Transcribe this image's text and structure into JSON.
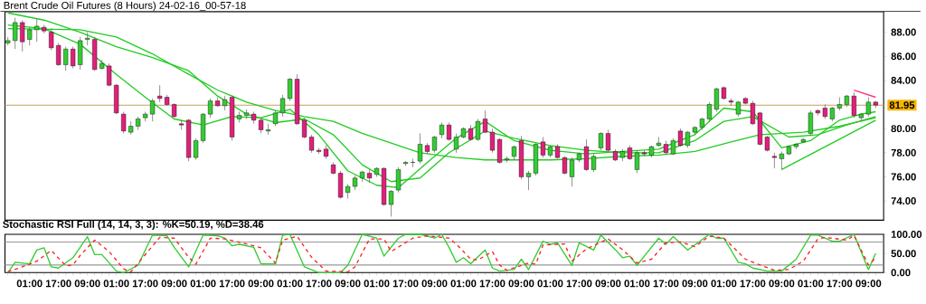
{
  "chart_data": [
    {
      "type": "candlestick",
      "title": "Brent Crude Oil Futures (8 Hours) 24-02-16_00-57-18",
      "tick_labels": "y",
      "categories": [
        null,
        null,
        null,
        null,
        null,
        null,
        null,
        null,
        null,
        null,
        null,
        null,
        null,
        null,
        null,
        null,
        null,
        null,
        null,
        null,
        null,
        null,
        null,
        null,
        null,
        null,
        null,
        null,
        null,
        null,
        null,
        null,
        null,
        null,
        null,
        null,
        null,
        null,
        null,
        null,
        null,
        null,
        null,
        null,
        null,
        null,
        null,
        null,
        null,
        null,
        null,
        null,
        null,
        null,
        null,
        null,
        null,
        null,
        null,
        null,
        null,
        null,
        null,
        null,
        null,
        null,
        null,
        null,
        null,
        null,
        null,
        null,
        null,
        null,
        null,
        null,
        null,
        null,
        null,
        null,
        null,
        null,
        null,
        null,
        null,
        null,
        null,
        null,
        null,
        null,
        null,
        null,
        null,
        null,
        null,
        null,
        null,
        null,
        null,
        null,
        null,
        null,
        null,
        null,
        null,
        null,
        null,
        null,
        null,
        null,
        null,
        null,
        null,
        null,
        null,
        null,
        null,
        null,
        null,
        null,
        null
      ],
      "ohlc": [
        [
          87.1,
          87.6,
          86.9,
          87.3
        ],
        [
          87.3,
          89.2,
          86.6,
          88.8
        ],
        [
          88.8,
          89.0,
          86.4,
          87.2
        ],
        [
          87.4,
          88.4,
          86.9,
          88.2
        ],
        [
          88.2,
          89.1,
          87.2,
          88.5
        ],
        [
          88.4,
          88.6,
          87.9,
          88.1
        ],
        [
          88.0,
          88.3,
          86.5,
          86.7
        ],
        [
          86.9,
          87.1,
          85.2,
          85.3
        ],
        [
          85.3,
          86.8,
          84.8,
          86.6
        ],
        [
          86.6,
          86.8,
          85.0,
          85.2
        ],
        [
          85.3,
          87.6,
          84.9,
          87.3
        ],
        [
          87.4,
          88.0,
          86.9,
          87.5
        ],
        [
          87.4,
          87.6,
          84.8,
          84.9
        ],
        [
          85.0,
          85.7,
          84.9,
          85.4
        ],
        [
          85.2,
          85.4,
          83.5,
          83.6
        ],
        [
          83.6,
          83.7,
          81.2,
          81.3
        ],
        [
          81.2,
          81.4,
          79.6,
          79.8
        ],
        [
          79.7,
          80.6,
          79.5,
          80.2
        ],
        [
          80.2,
          81.0,
          79.9,
          80.8
        ],
        [
          80.9,
          81.4,
          80.6,
          81.2
        ],
        [
          81.2,
          82.5,
          80.6,
          82.3
        ],
        [
          82.7,
          83.6,
          82.2,
          82.5
        ],
        [
          82.6,
          82.8,
          81.9,
          82.0
        ],
        [
          82.0,
          82.1,
          80.9,
          81.0
        ],
        [
          80.4,
          80.7,
          79.9,
          80.3
        ],
        [
          80.7,
          80.8,
          77.3,
          77.6
        ],
        [
          77.6,
          79.2,
          77.4,
          79.0
        ],
        [
          79.0,
          81.3,
          78.8,
          81.2
        ],
        [
          81.2,
          82.5,
          80.9,
          82.3
        ],
        [
          82.3,
          82.6,
          81.8,
          81.9
        ],
        [
          81.9,
          82.7,
          81.5,
          82.4
        ],
        [
          82.6,
          82.7,
          79.0,
          79.3
        ],
        [
          80.8,
          81.4,
          80.5,
          81.1
        ],
        [
          81.1,
          81.6,
          80.8,
          81.3
        ],
        [
          81.2,
          81.4,
          80.4,
          80.7
        ],
        [
          80.7,
          80.9,
          79.6,
          79.9
        ],
        [
          79.8,
          80.4,
          79.5,
          79.9
        ],
        [
          80.4,
          81.5,
          80.2,
          81.3
        ],
        [
          81.3,
          82.8,
          81.0,
          82.5
        ],
        [
          82.5,
          84.2,
          82.3,
          84.1
        ],
        [
          84.1,
          84.5,
          80.3,
          80.4
        ],
        [
          80.7,
          80.9,
          79.2,
          79.3
        ],
        [
          79.3,
          79.5,
          78.0,
          78.2
        ],
        [
          78.2,
          78.4,
          77.9,
          78.1
        ],
        [
          78.3,
          78.6,
          77.5,
          77.7
        ],
        [
          77.0,
          77.2,
          76.2,
          76.3
        ],
        [
          76.3,
          76.5,
          74.2,
          74.3
        ],
        [
          74.7,
          75.4,
          74.2,
          75.2
        ],
        [
          75.2,
          76.1,
          74.9,
          75.9
        ],
        [
          75.9,
          76.5,
          75.6,
          76.4
        ],
        [
          76.3,
          76.6,
          75.5,
          75.9
        ],
        [
          76.2,
          76.8,
          76.0,
          76.7
        ],
        [
          76.7,
          76.8,
          73.6,
          73.7
        ],
        [
          73.7,
          74.9,
          72.7,
          74.8
        ],
        [
          74.9,
          76.8,
          74.7,
          76.6
        ],
        [
          77.1,
          77.3,
          76.9,
          77.2
        ],
        [
          77.2,
          77.5,
          76.8,
          77.2
        ],
        [
          77.3,
          79.6,
          77.1,
          78.7
        ],
        [
          78.6,
          78.8,
          77.9,
          78.1
        ],
        [
          78.2,
          79.4,
          78.0,
          79.3
        ],
        [
          79.5,
          80.5,
          79.2,
          80.3
        ],
        [
          80.3,
          80.5,
          79.0,
          79.1
        ],
        [
          78.3,
          79.6,
          78.0,
          79.3
        ],
        [
          79.3,
          80.1,
          79.2,
          80.0
        ],
        [
          80.0,
          80.3,
          79.0,
          79.1
        ],
        [
          79.1,
          80.8,
          79.0,
          80.6
        ],
        [
          80.8,
          81.5,
          79.6,
          79.7
        ],
        [
          79.7,
          80.0,
          78.0,
          78.2
        ],
        [
          79.1,
          79.2,
          77.1,
          77.2
        ],
        [
          77.4,
          77.7,
          77.2,
          77.5
        ],
        [
          77.7,
          78.6,
          77.4,
          78.5
        ],
        [
          79.0,
          79.4,
          75.8,
          76.0
        ],
        [
          76.0,
          76.5,
          74.9,
          76.3
        ],
        [
          76.3,
          78.8,
          76.1,
          78.7
        ],
        [
          78.9,
          79.3,
          77.6,
          77.8
        ],
        [
          77.8,
          78.6,
          77.6,
          78.5
        ],
        [
          78.5,
          78.7,
          77.5,
          77.6
        ],
        [
          77.6,
          77.7,
          76.2,
          76.3
        ],
        [
          76.0,
          77.6,
          75.2,
          77.4
        ],
        [
          77.4,
          78.0,
          77.2,
          77.9
        ],
        [
          78.5,
          79.1,
          76.5,
          76.6
        ],
        [
          76.6,
          77.9,
          76.4,
          77.7
        ],
        [
          78.4,
          79.7,
          78.2,
          79.6
        ],
        [
          79.6,
          79.9,
          78.1,
          78.2
        ],
        [
          78.1,
          78.3,
          77.3,
          77.4
        ],
        [
          77.6,
          78.3,
          77.3,
          78.1
        ],
        [
          78.4,
          78.6,
          77.4,
          77.5
        ],
        [
          76.6,
          78.2,
          76.3,
          78.0
        ],
        [
          78.0,
          78.2,
          77.7,
          77.9
        ],
        [
          77.8,
          78.6,
          77.6,
          78.5
        ],
        [
          78.6,
          79.3,
          78.5,
          78.8
        ],
        [
          78.7,
          79.0,
          77.9,
          78.0
        ],
        [
          77.9,
          79.2,
          77.8,
          79.0
        ],
        [
          79.8,
          80.0,
          78.5,
          78.6
        ],
        [
          78.6,
          79.8,
          78.4,
          79.7
        ],
        [
          79.7,
          80.2,
          79.5,
          80.1
        ],
        [
          80.1,
          80.9,
          79.9,
          80.8
        ],
        [
          80.8,
          82.2,
          80.6,
          82.0
        ],
        [
          81.6,
          83.4,
          81.4,
          83.3
        ],
        [
          83.4,
          83.5,
          82.4,
          82.5
        ],
        [
          82.3,
          82.5,
          81.9,
          82.2
        ],
        [
          81.2,
          82.3,
          81.0,
          82.2
        ],
        [
          82.5,
          82.6,
          82.0,
          82.1
        ],
        [
          82.1,
          82.3,
          80.3,
          80.4
        ],
        [
          81.3,
          81.4,
          78.6,
          78.7
        ],
        [
          79.3,
          79.4,
          78.1,
          78.2
        ],
        [
          77.7,
          78.0,
          76.7,
          77.6
        ],
        [
          77.5,
          78.1,
          76.6,
          77.9
        ],
        [
          77.9,
          78.6,
          77.8,
          78.5
        ],
        [
          78.5,
          78.8,
          78.3,
          78.7
        ],
        [
          78.9,
          79.2,
          78.8,
          79.1
        ],
        [
          79.6,
          81.5,
          79.4,
          81.3
        ],
        [
          81.5,
          81.6,
          81.1,
          81.3
        ],
        [
          81.7,
          82.0,
          80.8,
          81.0
        ],
        [
          80.8,
          81.8,
          80.6,
          81.7
        ],
        [
          81.7,
          82.6,
          81.5,
          82.0
        ],
        [
          82.0,
          82.8,
          81.8,
          82.7
        ],
        [
          82.7,
          83.0,
          80.9,
          81.1
        ],
        [
          80.9,
          81.3,
          80.6,
          81.2
        ],
        [
          81.2,
          82.6,
          81.0,
          82.2
        ],
        [
          82.2,
          82.3,
          81.7,
          81.95
        ]
      ],
      "series": [
        {
          "type": "line",
          "color": "#22cc22",
          "values": [
            88.3,
            null,
            null,
            null,
            null,
            null,
            null,
            null,
            null,
            null,
            88.2,
            null,
            null,
            null,
            null,
            87.6,
            null,
            null,
            null,
            null,
            86.2,
            null,
            null,
            null,
            null,
            84.5,
            null,
            null,
            null,
            83.2,
            null,
            null,
            null,
            82.2,
            null,
            null,
            null,
            81.5,
            null,
            null,
            null,
            81.0,
            null,
            null,
            null,
            80.6,
            null,
            null,
            null,
            79.6,
            null,
            null,
            null,
            78.8,
            null,
            null,
            null,
            78.0,
            null,
            null,
            null,
            null,
            77.6,
            null,
            null,
            null,
            77.4,
            null,
            null,
            null,
            null,
            null,
            null,
            null,
            null,
            77.4,
            null,
            null,
            null,
            null,
            77.5,
            null,
            null,
            null,
            null,
            77.7,
            null,
            null,
            null,
            null,
            77.8,
            null,
            null,
            null,
            null,
            78.1,
            null,
            null,
            null,
            null,
            78.9,
            null,
            null,
            null,
            79.5,
            null,
            null,
            null,
            null,
            null,
            79.7,
            null,
            null,
            null,
            null,
            80.2,
            null,
            null,
            null,
            null,
            80.9
          ]
        },
        {
          "type": "line",
          "color": "#22cc22",
          "values": [
            89.6,
            null,
            null,
            null,
            null,
            89.0,
            null,
            null,
            null,
            null,
            88.0,
            null,
            null,
            null,
            null,
            86.8,
            null,
            null,
            null,
            null,
            85.9,
            null,
            null,
            null,
            null,
            84.8,
            null,
            null,
            null,
            82.7,
            null,
            null,
            null,
            81.2,
            null,
            null,
            null,
            80.5,
            null,
            null,
            null,
            80.8,
            null,
            null,
            null,
            79.5,
            null,
            null,
            null,
            77.0,
            null,
            null,
            null,
            75.6,
            null,
            null,
            null,
            75.9,
            null,
            null,
            null,
            78.0,
            null,
            null,
            null,
            null,
            79.8,
            null,
            null,
            null,
            79.2,
            null,
            null,
            null,
            null,
            78.6,
            null,
            null,
            null,
            null,
            78.2,
            null,
            null,
            null,
            null,
            78.0,
            null,
            null,
            null,
            null,
            78.0,
            null,
            null,
            null,
            null,
            79.0,
            null,
            null,
            null,
            80.6,
            null,
            null,
            null,
            81.0,
            null,
            null,
            null,
            null,
            79.3,
            null,
            null,
            null,
            79.5,
            null,
            null,
            null,
            80.3,
            null,
            null,
            null,
            81.0
          ]
        },
        {
          "type": "line",
          "color": "#22cc22",
          "values": [
            88.6,
            null,
            null,
            null,
            null,
            88.3,
            null,
            null,
            null,
            null,
            87.0,
            null,
            null,
            null,
            null,
            84.5,
            null,
            null,
            null,
            82.6,
            null,
            null,
            null,
            80.8,
            null,
            null,
            null,
            80.3,
            null,
            null,
            null,
            81.0,
            null,
            null,
            null,
            80.9,
            null,
            null,
            null,
            81.6,
            null,
            null,
            null,
            79.5,
            null,
            null,
            null,
            76.5,
            null,
            null,
            null,
            75.3,
            null,
            null,
            75.1,
            null,
            null,
            null,
            77.2,
            null,
            null,
            null,
            79.2,
            null,
            null,
            null,
            80.6,
            null,
            null,
            null,
            79.0,
            null,
            null,
            null,
            null,
            78.2,
            null,
            null,
            null,
            null,
            77.9,
            null,
            null,
            null,
            null,
            78.1,
            null,
            null,
            null,
            null,
            78.3,
            null,
            null,
            null,
            null,
            79.5,
            null,
            null,
            null,
            81.7,
            null,
            null,
            null,
            81.4,
            null,
            null,
            null,
            78.4,
            null,
            null,
            null,
            79.0,
            null,
            null,
            null,
            80.7,
            null,
            null,
            81.2,
            null,
            81.4
          ]
        },
        {
          "type": "line",
          "color": "#22cc22",
          "values": [
            null,
            null,
            null,
            null,
            null,
            null,
            null,
            null,
            null,
            null,
            null,
            null,
            null,
            null,
            null,
            null,
            null,
            null,
            null,
            null,
            null,
            null,
            null,
            null,
            null,
            null,
            null,
            null,
            null,
            null,
            null,
            null,
            null,
            null,
            null,
            null,
            null,
            null,
            null,
            null,
            null,
            null,
            null,
            null,
            null,
            null,
            null,
            null,
            null,
            null,
            null,
            null,
            null,
            null,
            null,
            null,
            null,
            null,
            null,
            null,
            null,
            null,
            null,
            null,
            null,
            null,
            null,
            null,
            null,
            null,
            null,
            null,
            null,
            null,
            null,
            null,
            null,
            null,
            null,
            null,
            null,
            null,
            null,
            null,
            null,
            null,
            null,
            null,
            null,
            null,
            null,
            null,
            null,
            null,
            null,
            null,
            null,
            null,
            null,
            null,
            null,
            null,
            null,
            null,
            null,
            null,
            null,
            76.6,
            null,
            null,
            null,
            null,
            null,
            null,
            null,
            null,
            null,
            null,
            null,
            null,
            80.7
          ]
        },
        {
          "type": "line",
          "color": "#ff3377",
          "values": [
            null,
            null,
            null,
            null,
            null,
            null,
            null,
            null,
            null,
            null,
            null,
            null,
            null,
            null,
            null,
            null,
            null,
            null,
            null,
            null,
            null,
            null,
            null,
            null,
            null,
            null,
            null,
            null,
            null,
            null,
            null,
            null,
            null,
            null,
            null,
            null,
            null,
            null,
            null,
            null,
            null,
            null,
            null,
            null,
            null,
            null,
            null,
            null,
            null,
            null,
            null,
            null,
            null,
            null,
            null,
            null,
            null,
            null,
            null,
            null,
            null,
            null,
            null,
            null,
            null,
            null,
            null,
            null,
            null,
            null,
            null,
            null,
            null,
            null,
            null,
            null,
            null,
            null,
            null,
            null,
            null,
            null,
            null,
            null,
            null,
            null,
            null,
            null,
            null,
            null,
            null,
            null,
            null,
            null,
            null,
            null,
            null,
            null,
            null,
            null,
            null,
            null,
            null,
            null,
            null,
            null,
            null,
            null,
            null,
            null,
            null,
            null,
            null,
            null,
            null,
            null,
            null,
            83.2,
            null,
            null,
            82.6
          ]
        }
      ],
      "ylim": [
        72.4,
        89.7
      ],
      "yticks": [
        {
          "value": 74,
          "label": "74.00"
        },
        {
          "value": 76,
          "label": "76.00"
        },
        {
          "value": 78,
          "label": "78.00"
        },
        {
          "value": 80,
          "label": "80.00"
        },
        {
          "value": 84,
          "label": "84.00"
        },
        {
          "value": 86,
          "label": "86.00"
        },
        {
          "value": 88,
          "label": "88.00"
        }
      ],
      "ref_lines": [
        {
          "axis": "y",
          "value": 81.95,
          "label": "81.95",
          "color": "#c8a060"
        }
      ]
    },
    {
      "type": "line",
      "title": "Stochastic RSI Full (14, 14, 3, 3): %K=50.19, %D=38.46",
      "categories": [
        null,
        null,
        null,
        "01:00",
        null,
        null,
        null,
        "17:00",
        null,
        null,
        null,
        "09:00",
        null,
        null,
        null,
        "01:00",
        null,
        null,
        null,
        "17:00",
        null,
        null,
        null,
        "09:00",
        null,
        null,
        null,
        "01:00",
        null,
        null,
        null,
        "17:00",
        null,
        null,
        null,
        "09:00",
        null,
        null,
        null,
        "01:00",
        null,
        null,
        null,
        "17:00",
        null,
        null,
        null,
        "09:00",
        null,
        null,
        null,
        "01:00",
        null,
        null,
        null,
        "17:00",
        null,
        null,
        null,
        "09:00",
        null,
        null,
        null,
        "01:00",
        null,
        null,
        null,
        "17:00",
        null,
        null,
        null,
        "09:00",
        null,
        null,
        null,
        "01:00",
        null,
        null,
        null,
        "17:00",
        null,
        null,
        null,
        "09:00",
        null,
        null,
        null,
        "01:00",
        null,
        null,
        null,
        "17:00",
        null,
        null,
        null,
        "09:00",
        null,
        null,
        null,
        "01:00",
        null,
        null,
        null,
        "17:00",
        null,
        null,
        null,
        "09:00",
        null,
        null,
        null,
        "01:00",
        null,
        null,
        null,
        "17:00",
        null,
        null,
        null,
        "09:00",
        null
      ],
      "series": [
        {
          "color": "#33cc33",
          "line_style": "solid",
          "values": [
            0,
            27,
            null,
            23,
            59,
            65,
            15,
            12,
            null,
            39,
            null,
            94,
            47,
            47,
            null,
            4,
            0,
            null,
            19,
            null,
            98,
            null,
            96,
            66,
            null,
            15,
            null,
            98,
            null,
            96,
            90,
            70,
            74,
            null,
            66,
            23,
            null,
            23,
            98,
            100,
            null,
            15,
            null,
            0,
            null,
            null,
            0,
            19,
            null,
            100,
            null,
            90,
            43,
            null,
            90,
            100,
            null,
            100,
            null,
            90,
            100,
            66,
            27,
            39,
            23,
            null,
            59,
            12,
            4,
            null,
            8,
            35,
            8,
            null,
            82,
            74,
            78,
            null,
            19,
            78,
            null,
            59,
            98,
            null,
            60,
            39,
            43,
            19,
            43,
            null,
            90,
            74,
            94,
            null,
            59,
            null,
            null,
            100,
            90,
            90,
            null,
            27,
            23,
            12,
            null,
            4,
            null,
            4,
            null,
            35,
            null,
            98,
            98,
            null,
            82,
            82,
            null,
            100,
            null,
            8,
            50.19
          ]
        },
        {
          "color": "#ff2020",
          "line_style": "dashed",
          "values": [
            2,
            null,
            null,
            22,
            30,
            null,
            58,
            null,
            18,
            20,
            45,
            null,
            85,
            null,
            55,
            null,
            10,
            2,
            null,
            null,
            null,
            92,
            null,
            90,
            null,
            40,
            22,
            null,
            90,
            null,
            88,
            null,
            null,
            75,
            null,
            65,
            null,
            25,
            85,
            null,
            95,
            null,
            40,
            null,
            4,
            null,
            null,
            2,
            15,
            null,
            88,
            null,
            88,
            55,
            null,
            null,
            90,
            null,
            96,
            null,
            null,
            90,
            75,
            null,
            35,
            33,
            null,
            55,
            20,
            6,
            null,
            null,
            25,
            22,
            72,
            null,
            null,
            75,
            30,
            null,
            62,
            null,
            null,
            88,
            null,
            60,
            null,
            25,
            null,
            35,
            null,
            78,
            null,
            80,
            null,
            68,
            null,
            95,
            null,
            90,
            null,
            null,
            35,
            null,
            20,
            null,
            6,
            null,
            8,
            null,
            30,
            null,
            88,
            92,
            null,
            null,
            85,
            97,
            null,
            20,
            38.46
          ]
        }
      ],
      "ylim": [
        0,
        100
      ],
      "yticks": [
        {
          "value": 0,
          "label": "0.00"
        },
        {
          "value": 50,
          "label": "50.00"
        },
        {
          "value": 100,
          "label": "100.00"
        }
      ],
      "ref_lines": [
        {
          "axis": "y",
          "value": 20,
          "color": "#999999"
        },
        {
          "axis": "y",
          "value": 80,
          "color": "#999999"
        }
      ]
    }
  ]
}
